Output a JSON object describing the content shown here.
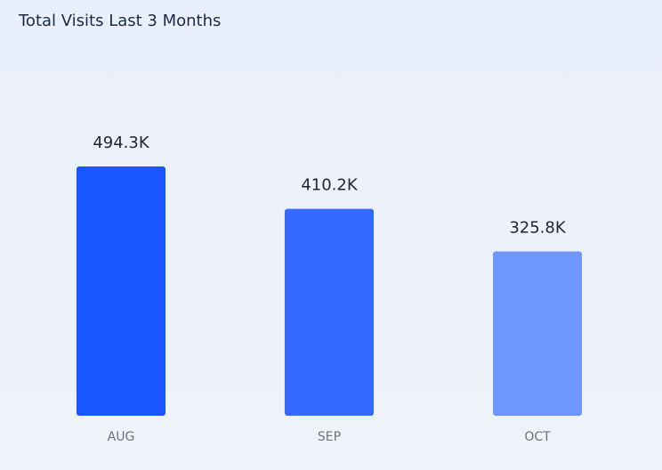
{
  "chart_data": {
    "type": "bar",
    "title": "Total Visits Last 3 Months",
    "categories": [
      "AUG",
      "SEP",
      "OCT"
    ],
    "values": [
      494.3,
      410.2,
      325.8
    ],
    "value_labels": [
      "494.3K",
      "410.2K",
      "325.8K"
    ],
    "colors": [
      "#1a56ff",
      "#3369ff",
      "#6e96fc"
    ]
  }
}
